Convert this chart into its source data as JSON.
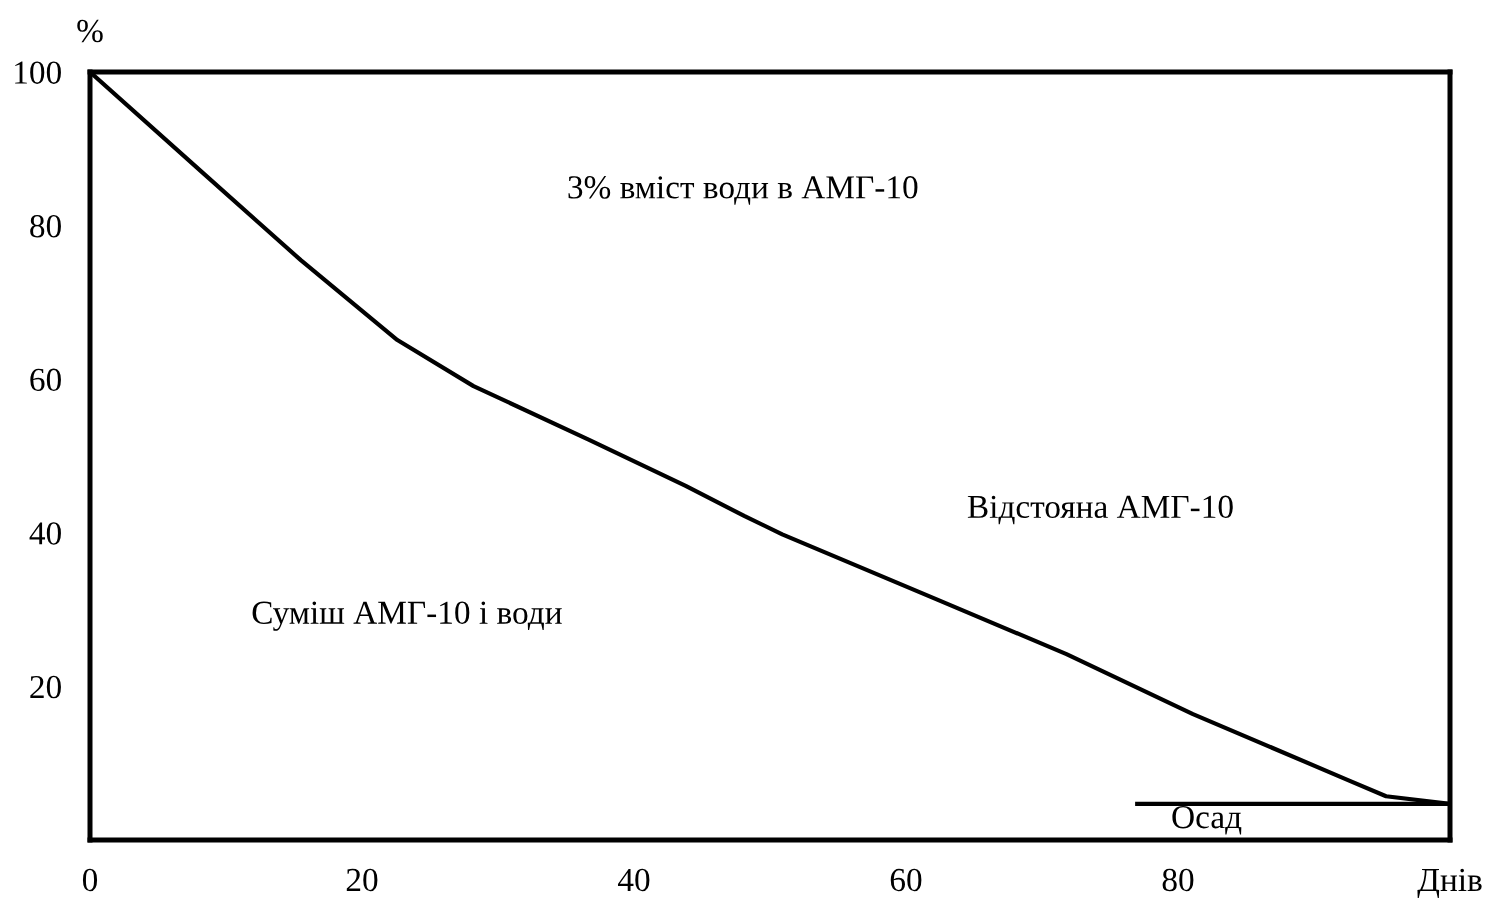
{
  "chart_data": {
    "type": "line",
    "ylabel": "%",
    "xlim": [
      0,
      100
    ],
    "ylim": [
      0,
      100
    ],
    "xticks": [
      0,
      20,
      40,
      60,
      80,
      {
        "value": 100,
        "label": "Днів"
      }
    ],
    "yticks": [
      20,
      40,
      60,
      80,
      100
    ],
    "series": [
      {
        "color": "#000000",
        "x": [
          0,
          8.4,
          15.5,
          22.6,
          28.2,
          36.7,
          43.8,
          48.1,
          50.9,
          62.3,
          71.8,
          81.1,
          92.5,
          95.3,
          100
        ],
        "values": [
          100,
          86.7,
          75.5,
          65.1,
          59.1,
          52.1,
          46.1,
          42.2,
          39.8,
          31.3,
          24.2,
          16.4,
          7.8,
          5.7,
          4.7
        ]
      },
      {
        "color": "#000000",
        "x": [
          77,
          100
        ],
        "values": [
          4.7,
          4.7
        ]
      }
    ],
    "annotations": [
      "3% вміст води в АМГ-10",
      "Відстояна АМГ-10",
      "Суміш АМГ-10 і води",
      "Осад"
    ],
    "grid": false,
    "legend": false,
    "marker": "none",
    "line_style": "solid"
  }
}
